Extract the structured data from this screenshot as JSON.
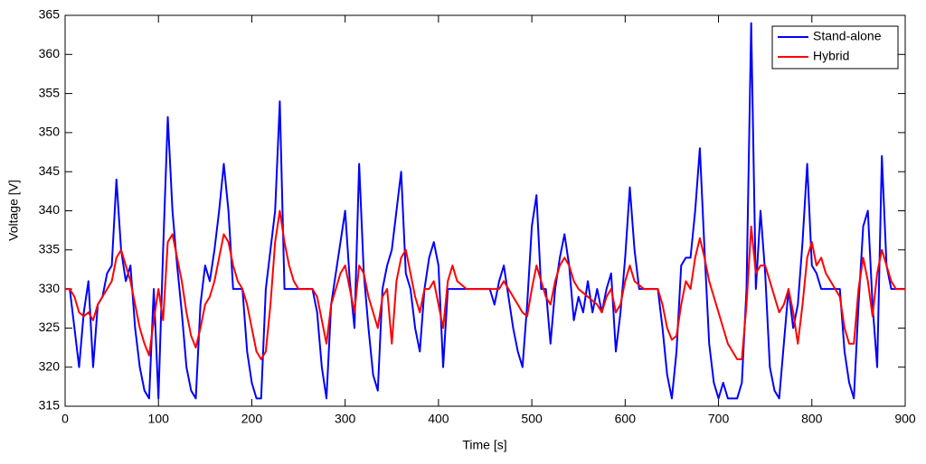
{
  "chart_data": {
    "type": "line",
    "x_label": "Time [s]",
    "y_label": "Voltage [V]",
    "x": [
      0,
      5,
      10,
      15,
      20,
      25,
      30,
      35,
      40,
      45,
      50,
      55,
      60,
      65,
      70,
      75,
      80,
      85,
      90,
      95,
      100,
      105,
      110,
      115,
      120,
      125,
      130,
      135,
      140,
      145,
      150,
      155,
      160,
      165,
      170,
      175,
      180,
      185,
      190,
      195,
      200,
      205,
      210,
      215,
      220,
      225,
      230,
      235,
      240,
      245,
      250,
      255,
      260,
      265,
      270,
      275,
      280,
      285,
      290,
      295,
      300,
      305,
      310,
      315,
      320,
      325,
      330,
      335,
      340,
      345,
      350,
      355,
      360,
      365,
      370,
      375,
      380,
      385,
      390,
      395,
      400,
      405,
      410,
      415,
      420,
      425,
      430,
      435,
      440,
      445,
      450,
      455,
      460,
      465,
      470,
      475,
      480,
      485,
      490,
      495,
      500,
      505,
      510,
      515,
      520,
      525,
      530,
      535,
      540,
      545,
      550,
      555,
      560,
      565,
      570,
      575,
      580,
      585,
      590,
      595,
      600,
      605,
      610,
      615,
      620,
      625,
      630,
      635,
      640,
      645,
      650,
      655,
      660,
      665,
      670,
      675,
      680,
      685,
      690,
      695,
      700,
      705,
      710,
      715,
      720,
      725,
      730,
      735,
      740,
      745,
      750,
      755,
      760,
      765,
      770,
      775,
      780,
      785,
      790,
      795,
      800,
      805,
      810,
      815,
      820,
      825,
      830,
      835,
      840,
      845,
      850,
      855,
      860,
      865,
      870,
      875,
      880,
      885,
      890,
      895,
      900
    ],
    "series": [
      {
        "name": "Stand-alone",
        "color": "#0000ff",
        "values": [
          330,
          330,
          325,
          320,
          327,
          331,
          320,
          328,
          329,
          332,
          333,
          344,
          335,
          331,
          333,
          325,
          320,
          317,
          316,
          330,
          316,
          335,
          352,
          340,
          333,
          327,
          320,
          317,
          316,
          328,
          333,
          331,
          335,
          340,
          346,
          340,
          330,
          330,
          330,
          322,
          318,
          316,
          316,
          330,
          335,
          340,
          354,
          330,
          330,
          330,
          330,
          330,
          330,
          330,
          327,
          320,
          316,
          328,
          332,
          336,
          340,
          331,
          325,
          346,
          332,
          325,
          319,
          317,
          330,
          333,
          335,
          340,
          345,
          332,
          330,
          325,
          322,
          330,
          334,
          336,
          333,
          320,
          330,
          330,
          330,
          330,
          330,
          330,
          330,
          330,
          330,
          330,
          328,
          331,
          333,
          329,
          325,
          322,
          320,
          328,
          338,
          342,
          330,
          330,
          323,
          330,
          334,
          337,
          333,
          326,
          329,
          327,
          331,
          327,
          330,
          327,
          330,
          332,
          322,
          327,
          334,
          343,
          335,
          330,
          330,
          330,
          330,
          330,
          325,
          319,
          316,
          322,
          333,
          334,
          334,
          340,
          348,
          335,
          323,
          318,
          316,
          318,
          316,
          316,
          316,
          318,
          330,
          364,
          330,
          340,
          332,
          320,
          317,
          316,
          323,
          330,
          325,
          328,
          336,
          346,
          333,
          332,
          330,
          330,
          330,
          330,
          330,
          322,
          318,
          316,
          328,
          338,
          340,
          328,
          320,
          347,
          333,
          330,
          330,
          330,
          330
        ]
      },
      {
        "name": "Hybrid",
        "color": "#ff0000",
        "values": [
          330,
          330,
          329,
          327,
          326.5,
          327,
          326,
          328,
          329,
          330,
          331,
          334,
          335,
          333,
          331,
          328,
          325,
          323,
          321.5,
          326,
          330,
          326,
          336,
          337,
          334,
          331,
          327,
          324,
          322.5,
          325,
          328,
          329,
          331,
          334,
          337,
          336,
          333,
          331,
          330,
          328,
          325,
          322,
          321,
          322,
          328,
          336,
          340,
          336,
          333,
          331,
          330,
          330,
          330,
          330,
          329,
          326,
          323,
          328,
          330,
          332,
          333,
          330,
          327,
          333,
          332,
          329,
          327,
          325,
          329,
          330,
          323,
          331,
          334,
          335,
          332,
          329,
          327,
          330,
          330,
          331,
          328,
          325,
          331,
          333,
          331,
          330.5,
          330,
          330,
          330,
          330,
          330,
          330,
          330,
          330,
          331,
          330,
          329,
          328,
          327,
          326.5,
          330,
          333,
          331,
          329,
          328,
          331,
          333,
          334,
          333,
          331,
          330,
          329.5,
          329,
          328.5,
          328,
          327,
          329,
          330,
          327,
          328,
          331,
          333,
          331,
          330.5,
          330,
          330,
          330,
          330,
          328,
          325,
          323.5,
          324,
          328,
          331,
          330,
          334,
          336.5,
          334,
          331,
          329,
          327,
          325,
          323,
          322,
          321,
          321,
          328,
          338,
          332,
          333,
          333,
          331,
          329,
          327,
          328,
          330,
          327,
          323,
          328,
          334,
          336,
          333,
          334,
          332,
          331,
          330,
          329,
          325,
          323,
          323,
          330,
          334,
          331,
          326.5,
          332,
          335,
          333,
          331,
          330,
          330,
          330
        ]
      }
    ],
    "xlim": [
      0,
      900
    ],
    "xticks": [
      0,
      100,
      200,
      300,
      400,
      500,
      600,
      700,
      800,
      900
    ],
    "ylim": [
      315,
      365
    ],
    "yticks": [
      315,
      320,
      325,
      330,
      335,
      340,
      345,
      350,
      355,
      360,
      365
    ],
    "grid": false,
    "legend": "upper right"
  }
}
